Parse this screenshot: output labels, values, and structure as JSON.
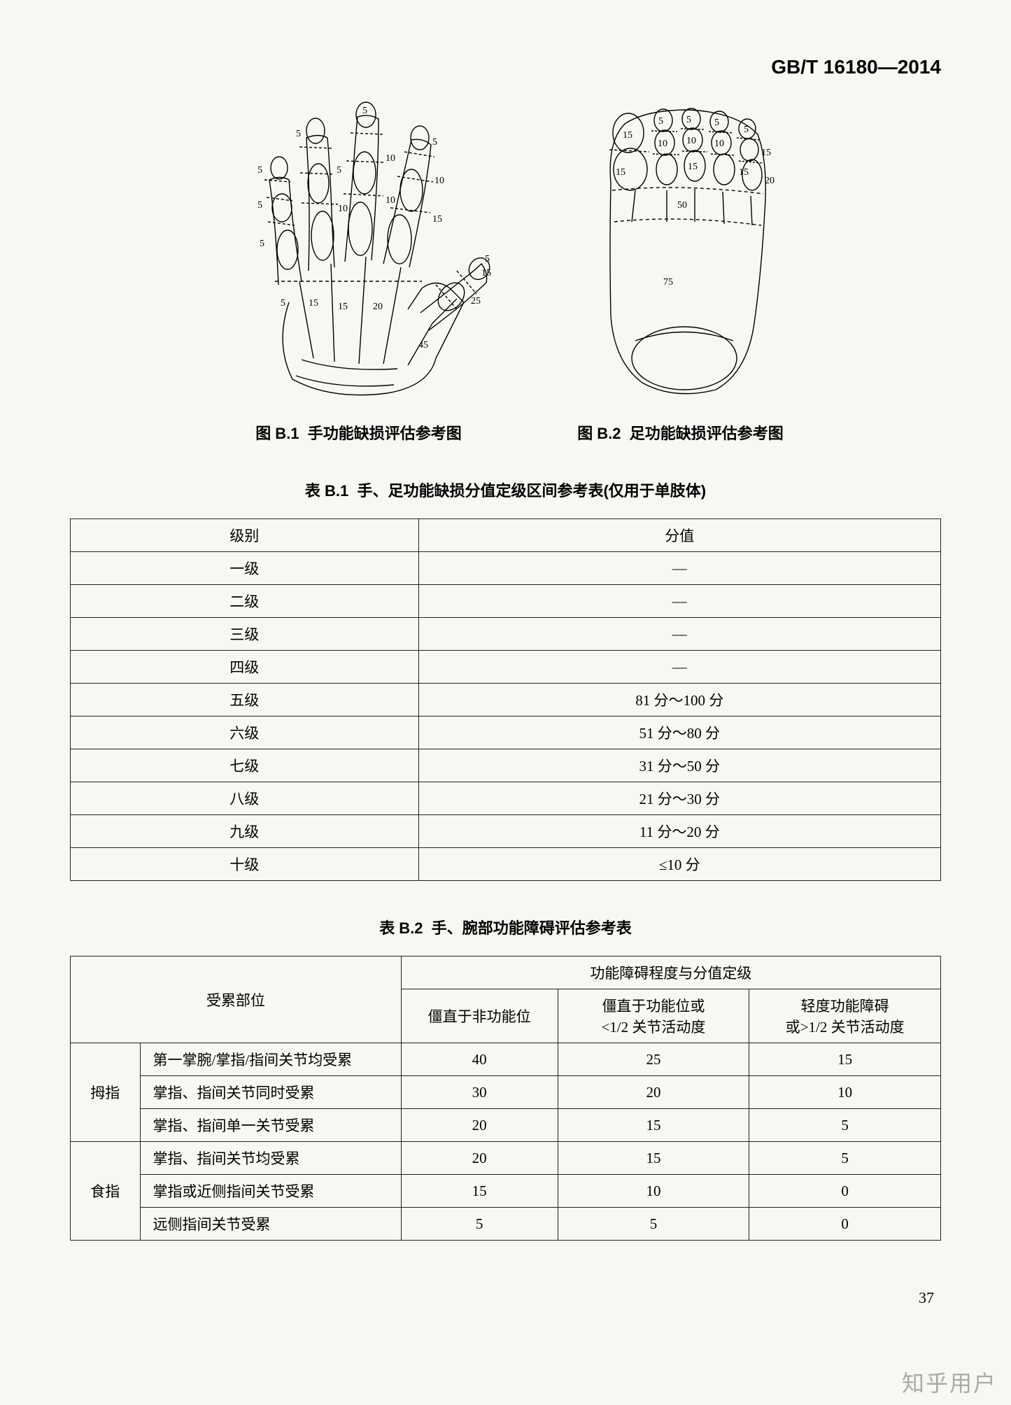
{
  "header": {
    "standard": "GB/T 16180—2014"
  },
  "figures": {
    "b1": {
      "caption_prefix": "图 B.1",
      "caption": "手功能缺损评估参考图",
      "labels": {
        "thumb_mc": "45",
        "thumb_pp": "25",
        "thumb_dp_a": "5",
        "thumb_dp_b": "15",
        "index_mc": "20",
        "index_pp": "15",
        "index_mp": "10",
        "index_dp": "5",
        "middle_mc": "15",
        "middle_pp": "10",
        "middle_mp": "10",
        "middle_dp": "5",
        "ring_mc": "15",
        "ring_pp": "10",
        "ring_mp": "5",
        "ring_dp": "5",
        "little_mc": "5",
        "little_pp": "5",
        "little_mp": "5",
        "little_dp": "5"
      }
    },
    "b2": {
      "caption_prefix": "图 B.2",
      "caption": "足功能缺损评估参考图",
      "labels": {
        "big_mt": "75",
        "big_pp": "50",
        "big_dp": "15",
        "t2_pp": "15",
        "t2_mp": "10",
        "t2_dp": "5",
        "t3_pp": "15",
        "t3_mp": "10",
        "t3_dp": "5",
        "t4_pp": "15",
        "t4_mp": "10",
        "t4_dp": "5",
        "t5_pp": "20",
        "t5_mp": "15",
        "t5_dp": "5"
      }
    }
  },
  "tableB1": {
    "title_prefix": "表 B.1",
    "title": "手、足功能缺损分值定级区间参考表(仅用于单肢体)",
    "header": {
      "col1": "级别",
      "col2": "分值"
    },
    "rows": [
      {
        "level": "一级",
        "value": "—"
      },
      {
        "level": "二级",
        "value": "—"
      },
      {
        "level": "三级",
        "value": "—"
      },
      {
        "level": "四级",
        "value": "—"
      },
      {
        "level": "五级",
        "value": "81 分～100 分"
      },
      {
        "level": "六级",
        "value": "51 分～80 分"
      },
      {
        "level": "七级",
        "value": "31 分～50 分"
      },
      {
        "level": "八级",
        "value": "21 分～30 分"
      },
      {
        "level": "九级",
        "value": "11 分～20 分"
      },
      {
        "level": "十级",
        "value": "≤10 分"
      }
    ]
  },
  "tableB2": {
    "title_prefix": "表 B.2",
    "title": "手、腕部功能障碍评估参考表",
    "header": {
      "part": "受累部位",
      "degree": "功能障碍程度与分值定级",
      "c1": "僵直于非功能位",
      "c2a": "僵直于功能位或",
      "c2b": "<1/2 关节活动度",
      "c3a": "轻度功能障碍",
      "c3b": "或>1/2 关节活动度"
    },
    "groups": [
      {
        "name": "拇指",
        "rows": [
          {
            "desc": "第一掌腕/掌指/指间关节均受累",
            "v1": "40",
            "v2": "25",
            "v3": "15"
          },
          {
            "desc": "掌指、指间关节同时受累",
            "v1": "30",
            "v2": "20",
            "v3": "10"
          },
          {
            "desc": "掌指、指间单一关节受累",
            "v1": "20",
            "v2": "15",
            "v3": "5"
          }
        ]
      },
      {
        "name": "食指",
        "rows": [
          {
            "desc": "掌指、指间关节均受累",
            "v1": "20",
            "v2": "15",
            "v3": "5"
          },
          {
            "desc": "掌指或近侧指间关节受累",
            "v1": "15",
            "v2": "10",
            "v3": "0"
          },
          {
            "desc": "远侧指间关节受累",
            "v1": "5",
            "v2": "5",
            "v3": "0"
          }
        ]
      }
    ]
  },
  "pageNumber": "37",
  "watermark": "知乎用户"
}
